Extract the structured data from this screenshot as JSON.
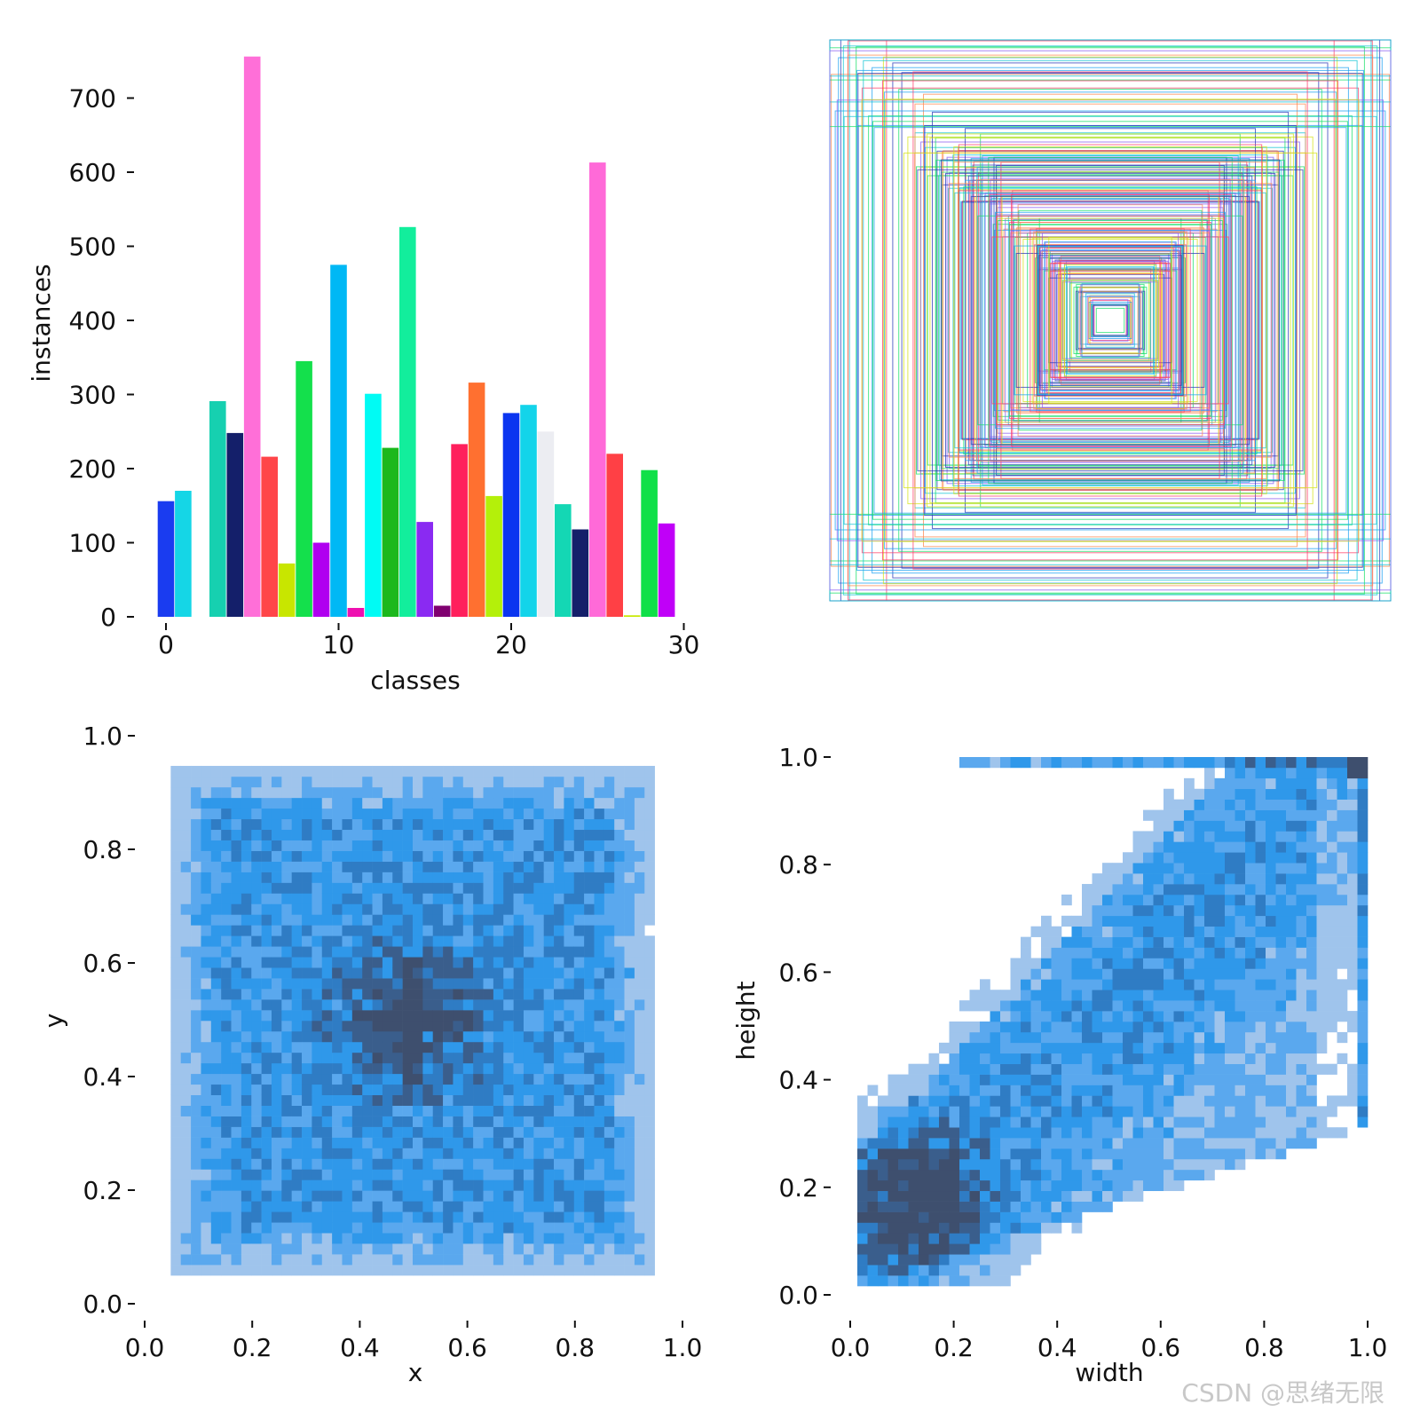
{
  "watermark": "CSDN @思绪无限",
  "chart_data": [
    {
      "type": "bar",
      "xlabel": "classes",
      "ylabel": "instances",
      "xlim": [
        -1,
        30
      ],
      "ylim": [
        0,
        760
      ],
      "xticks": [
        "0",
        "10",
        "20",
        "30"
      ],
      "yticks": [
        "0",
        "100",
        "200",
        "300",
        "400",
        "500",
        "600",
        "700"
      ],
      "values": [
        156,
        170,
        0,
        291,
        248,
        756,
        216,
        72,
        345,
        100,
        475,
        12,
        301,
        228,
        526,
        128,
        15,
        233,
        316,
        163,
        275,
        286,
        250,
        152,
        118,
        613,
        220,
        2,
        198,
        126
      ],
      "colors": [
        "#1a3cf0",
        "#15d6e6",
        "#f2f2f5",
        "#16d0b0",
        "#141f6a",
        "#ff6fd8",
        "#ff4549",
        "#c8e600",
        "#14e04c",
        "#b000f0",
        "#00b8f5",
        "#ee10b0",
        "#00fbf4",
        "#1cb81c",
        "#12ee9c",
        "#8a2af2",
        "#800070",
        "#ff1f5c",
        "#ff7030",
        "#b4f00a",
        "#0b35f0",
        "#13d4ea",
        "#ecedf2",
        "#14d7b4",
        "#141f6a",
        "#ff6ad8",
        "#ff4045",
        "#c8e800",
        "#10e048",
        "#c000f8"
      ]
    },
    {
      "type": "box-overlay",
      "description": "label boxes centered at the image center",
      "palette": [
        "#ff3d6a",
        "#19e06a",
        "#1da1f2",
        "#d4e21a",
        "#8a5cf0",
        "#12c4d4",
        "#ff8a50",
        "#2a3ab8"
      ]
    },
    {
      "type": "heatmap",
      "xlabel": "x",
      "ylabel": "y",
      "xlim": [
        0,
        1
      ],
      "ylim": [
        0,
        1
      ],
      "xticks": [
        "0.0",
        "0.2",
        "0.4",
        "0.6",
        "0.8",
        "1.0"
      ],
      "yticks": [
        "0.0",
        "0.2",
        "0.4",
        "0.6",
        "0.8",
        "1.0"
      ],
      "bins": 50
    },
    {
      "type": "heatmap",
      "xlabel": "width",
      "ylabel": "height",
      "xlim": [
        0,
        1
      ],
      "ylim": [
        0,
        1
      ],
      "xticks": [
        "0.0",
        "0.2",
        "0.4",
        "0.6",
        "0.8",
        "1.0"
      ],
      "yticks": [
        "0.0",
        "0.2",
        "0.4",
        "0.6",
        "0.8",
        "1.0"
      ],
      "bins": 50
    }
  ],
  "heat_colors": [
    "#9fc4ec",
    "#5aa8ee",
    "#2f98ea",
    "#2f7cc4",
    "#3a5e8c",
    "#3e4f6e"
  ]
}
